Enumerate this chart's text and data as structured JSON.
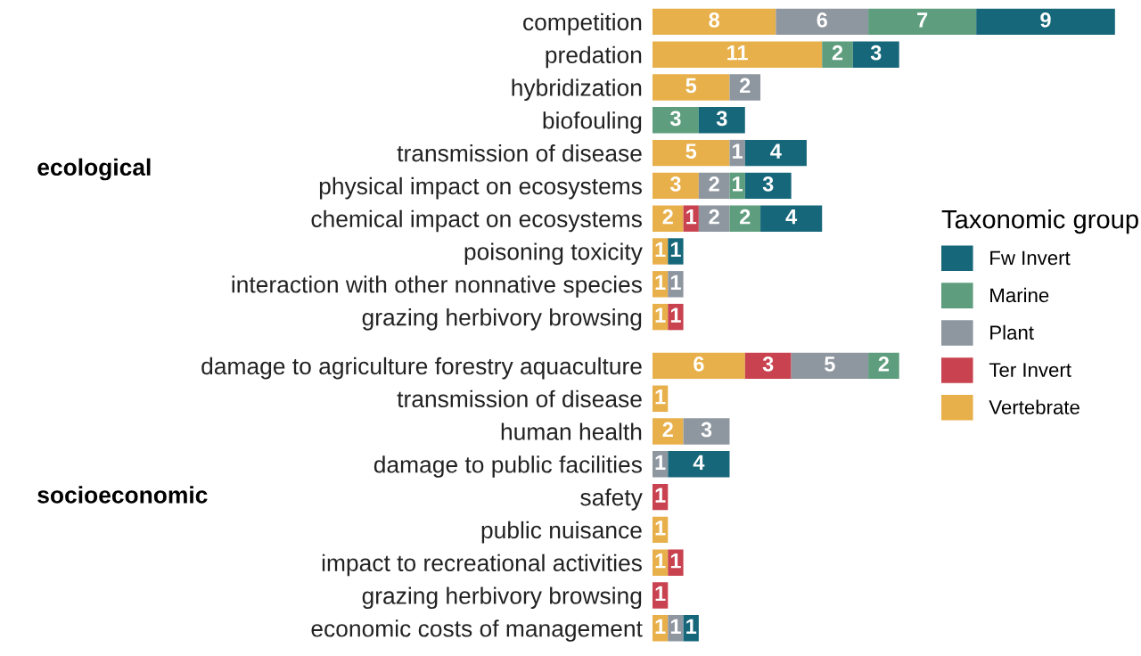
{
  "chart_data": [
    {
      "type": "bar",
      "orientation": "horizontal",
      "stacked": true,
      "data_labels": true,
      "grid": false,
      "legend": "right",
      "legend_title": "Taxonomic group",
      "tick_labels": "y",
      "ylabel": "ecological",
      "categories": [
        "competition",
        "predation",
        "hybridization",
        "biofouling",
        "transmission of disease",
        "physical impact on ecosystems",
        "chemical impact on ecosystems",
        "poisoning toxicity",
        "interaction with other nonnative species",
        "grazing herbivory browsing"
      ],
      "series": [
        {
          "name": "Vertebrate",
          "color": "#e8b04a",
          "values": [
            8,
            11,
            5,
            null,
            5,
            3,
            2,
            1,
            1,
            1
          ]
        },
        {
          "name": "Ter Invert",
          "color": "#c9424f",
          "values": [
            null,
            null,
            null,
            null,
            null,
            null,
            1,
            null,
            null,
            1
          ]
        },
        {
          "name": "Plant",
          "color": "#8e96a0",
          "values": [
            6,
            null,
            2,
            null,
            1,
            2,
            2,
            null,
            1,
            null
          ]
        },
        {
          "name": "Marine",
          "color": "#5e9e7e",
          "values": [
            7,
            2,
            null,
            3,
            null,
            1,
            2,
            null,
            null,
            null
          ]
        },
        {
          "name": "Fw Invert",
          "color": "#17677b",
          "values": [
            9,
            3,
            null,
            3,
            4,
            3,
            4,
            1,
            null,
            null
          ]
        }
      ]
    },
    {
      "type": "bar",
      "orientation": "horizontal",
      "stacked": true,
      "data_labels": true,
      "grid": false,
      "legend": false,
      "tick_labels": "y",
      "ylabel": "socioeconomic",
      "categories": [
        "damage to agriculture forestry aquaculture",
        "transmission of disease",
        "human health",
        "damage to public facilities",
        "safety",
        "public nuisance",
        "impact to recreational activities",
        "grazing herbivory browsing",
        "economic costs of management"
      ],
      "series": [
        {
          "color": "#e8b04a",
          "values": [
            6,
            1,
            2,
            null,
            null,
            1,
            1,
            null,
            1
          ]
        },
        {
          "color": "#c9424f",
          "values": [
            3,
            null,
            null,
            null,
            1,
            null,
            1,
            1,
            null
          ]
        },
        {
          "color": "#8e96a0",
          "values": [
            5,
            null,
            3,
            1,
            null,
            null,
            null,
            null,
            1
          ]
        },
        {
          "color": "#5e9e7e",
          "values": [
            2,
            null,
            null,
            null,
            null,
            null,
            null,
            null,
            null
          ]
        },
        {
          "color": "#17677b",
          "values": [
            null,
            null,
            null,
            4,
            null,
            null,
            null,
            null,
            1
          ]
        }
      ]
    }
  ]
}
